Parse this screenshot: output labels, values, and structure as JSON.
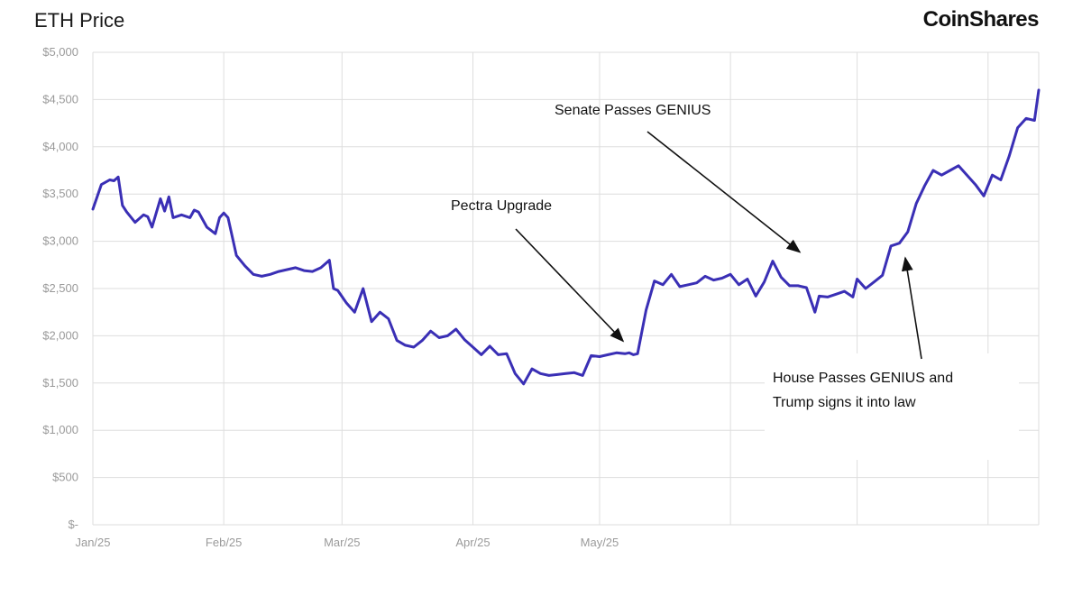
{
  "header": {
    "title": "ETH Price",
    "brand": "CoinShares"
  },
  "chart_data": {
    "type": "line",
    "title": "ETH Price",
    "xlabel": "",
    "ylabel": "",
    "ylim": [
      0,
      5000
    ],
    "y_ticks": [
      0,
      500,
      1000,
      1500,
      2000,
      2500,
      3000,
      3500,
      4000,
      4500,
      5000
    ],
    "y_tick_labels": [
      "$-",
      "$500",
      "$1,000",
      "$1,500",
      "$2,000",
      "$2,500",
      "$3,000",
      "$3,500",
      "$4,000",
      "$4,500",
      "$5,000"
    ],
    "x_tick_labels": [
      "Jan/25",
      "Feb/25",
      "Mar/25",
      "Apr/25",
      "May/25"
    ],
    "x_tick_dates": [
      "2025-01-01",
      "2025-02-01",
      "2025-03-01",
      "2025-04-01",
      "2025-05-01"
    ],
    "unlabeled_gridline_dates": [
      "2025-06-01",
      "2025-07-01",
      "2025-08-01"
    ],
    "xlim": [
      "2025-01-01",
      "2025-08-13"
    ],
    "grid": true,
    "line_color": "#3a2fb5",
    "series": [
      {
        "x": [
          "2025-01-01",
          "2025-01-03",
          "2025-01-05",
          "2025-01-06",
          "2025-01-07",
          "2025-01-08",
          "2025-01-09",
          "2025-01-11",
          "2025-01-13",
          "2025-01-14",
          "2025-01-15",
          "2025-01-17",
          "2025-01-18",
          "2025-01-19",
          "2025-01-20",
          "2025-01-22",
          "2025-01-24",
          "2025-01-25",
          "2025-01-26",
          "2025-01-28",
          "2025-01-30",
          "2025-01-31",
          "2025-02-01",
          "2025-02-02",
          "2025-02-04",
          "2025-02-06",
          "2025-02-08",
          "2025-02-10",
          "2025-02-12",
          "2025-02-14",
          "2025-02-16",
          "2025-02-18",
          "2025-02-20",
          "2025-02-22",
          "2025-02-24",
          "2025-02-26",
          "2025-02-27",
          "2025-02-28",
          "2025-03-02",
          "2025-03-04",
          "2025-03-06",
          "2025-03-08",
          "2025-03-10",
          "2025-03-12",
          "2025-03-14",
          "2025-03-16",
          "2025-03-18",
          "2025-03-20",
          "2025-03-22",
          "2025-03-24",
          "2025-03-26",
          "2025-03-28",
          "2025-03-30",
          "2025-04-01",
          "2025-04-03",
          "2025-04-05",
          "2025-04-07",
          "2025-04-09",
          "2025-04-11",
          "2025-04-13",
          "2025-04-15",
          "2025-04-17",
          "2025-04-19",
          "2025-04-21",
          "2025-04-23",
          "2025-04-25",
          "2025-04-27",
          "2025-04-29",
          "2025-05-01",
          "2025-05-03",
          "2025-05-05",
          "2025-05-07",
          "2025-05-08",
          "2025-05-09",
          "2025-05-10",
          "2025-05-12",
          "2025-05-14",
          "2025-05-16",
          "2025-05-18",
          "2025-05-20",
          "2025-05-22",
          "2025-05-24",
          "2025-05-26",
          "2025-05-28",
          "2025-05-30",
          "2025-06-01",
          "2025-06-03",
          "2025-06-05",
          "2025-06-07",
          "2025-06-09",
          "2025-06-11",
          "2025-06-13",
          "2025-06-15",
          "2025-06-17",
          "2025-06-19",
          "2025-06-21",
          "2025-06-22",
          "2025-06-24",
          "2025-06-26",
          "2025-06-28",
          "2025-06-30",
          "2025-07-01",
          "2025-07-03",
          "2025-07-05",
          "2025-07-07",
          "2025-07-09",
          "2025-07-11",
          "2025-07-13",
          "2025-07-15",
          "2025-07-17",
          "2025-07-19",
          "2025-07-21",
          "2025-07-23",
          "2025-07-25",
          "2025-07-27",
          "2025-07-29",
          "2025-07-31",
          "2025-08-02",
          "2025-08-04",
          "2025-08-06",
          "2025-08-08",
          "2025-08-10",
          "2025-08-12",
          "2025-08-13"
        ],
        "y": [
          3340,
          3600,
          3650,
          3640,
          3680,
          3380,
          3310,
          3200,
          3280,
          3260,
          3150,
          3450,
          3320,
          3470,
          3250,
          3280,
          3250,
          3330,
          3310,
          3150,
          3080,
          3250,
          3300,
          3250,
          2850,
          2740,
          2650,
          2630,
          2650,
          2680,
          2700,
          2720,
          2690,
          2680,
          2720,
          2800,
          2500,
          2480,
          2350,
          2250,
          2500,
          2150,
          2250,
          2180,
          1950,
          1900,
          1880,
          1950,
          2050,
          1980,
          2000,
          2070,
          1960,
          1880,
          1800,
          1890,
          1800,
          1810,
          1600,
          1490,
          1650,
          1600,
          1580,
          1590,
          1600,
          1610,
          1580,
          1790,
          1780,
          1800,
          1820,
          1810,
          1820,
          1800,
          1810,
          2270,
          2580,
          2540,
          2650,
          2520,
          2540,
          2560,
          2630,
          2590,
          2610,
          2650,
          2540,
          2600,
          2420,
          2570,
          2790,
          2620,
          2530,
          2530,
          2510,
          2250,
          2420,
          2410,
          2440,
          2470,
          2410,
          2600,
          2500,
          2570,
          2640,
          2950,
          2980,
          3100,
          3400,
          3590,
          3750,
          3700,
          3750,
          3800,
          3700,
          3600,
          3480,
          3700,
          3650,
          3900,
          4200,
          4300,
          4280,
          4600
        ]
      }
    ],
    "annotations": [
      {
        "text": "Pectra Upgrade",
        "date": "2025-05-07"
      },
      {
        "text": "Senate Passes GENIUS",
        "date": "2025-06-17"
      },
      {
        "text": "House Passes GENIUS and",
        "text2": "Trump signs it into law",
        "date": "2025-07-18"
      }
    ]
  }
}
